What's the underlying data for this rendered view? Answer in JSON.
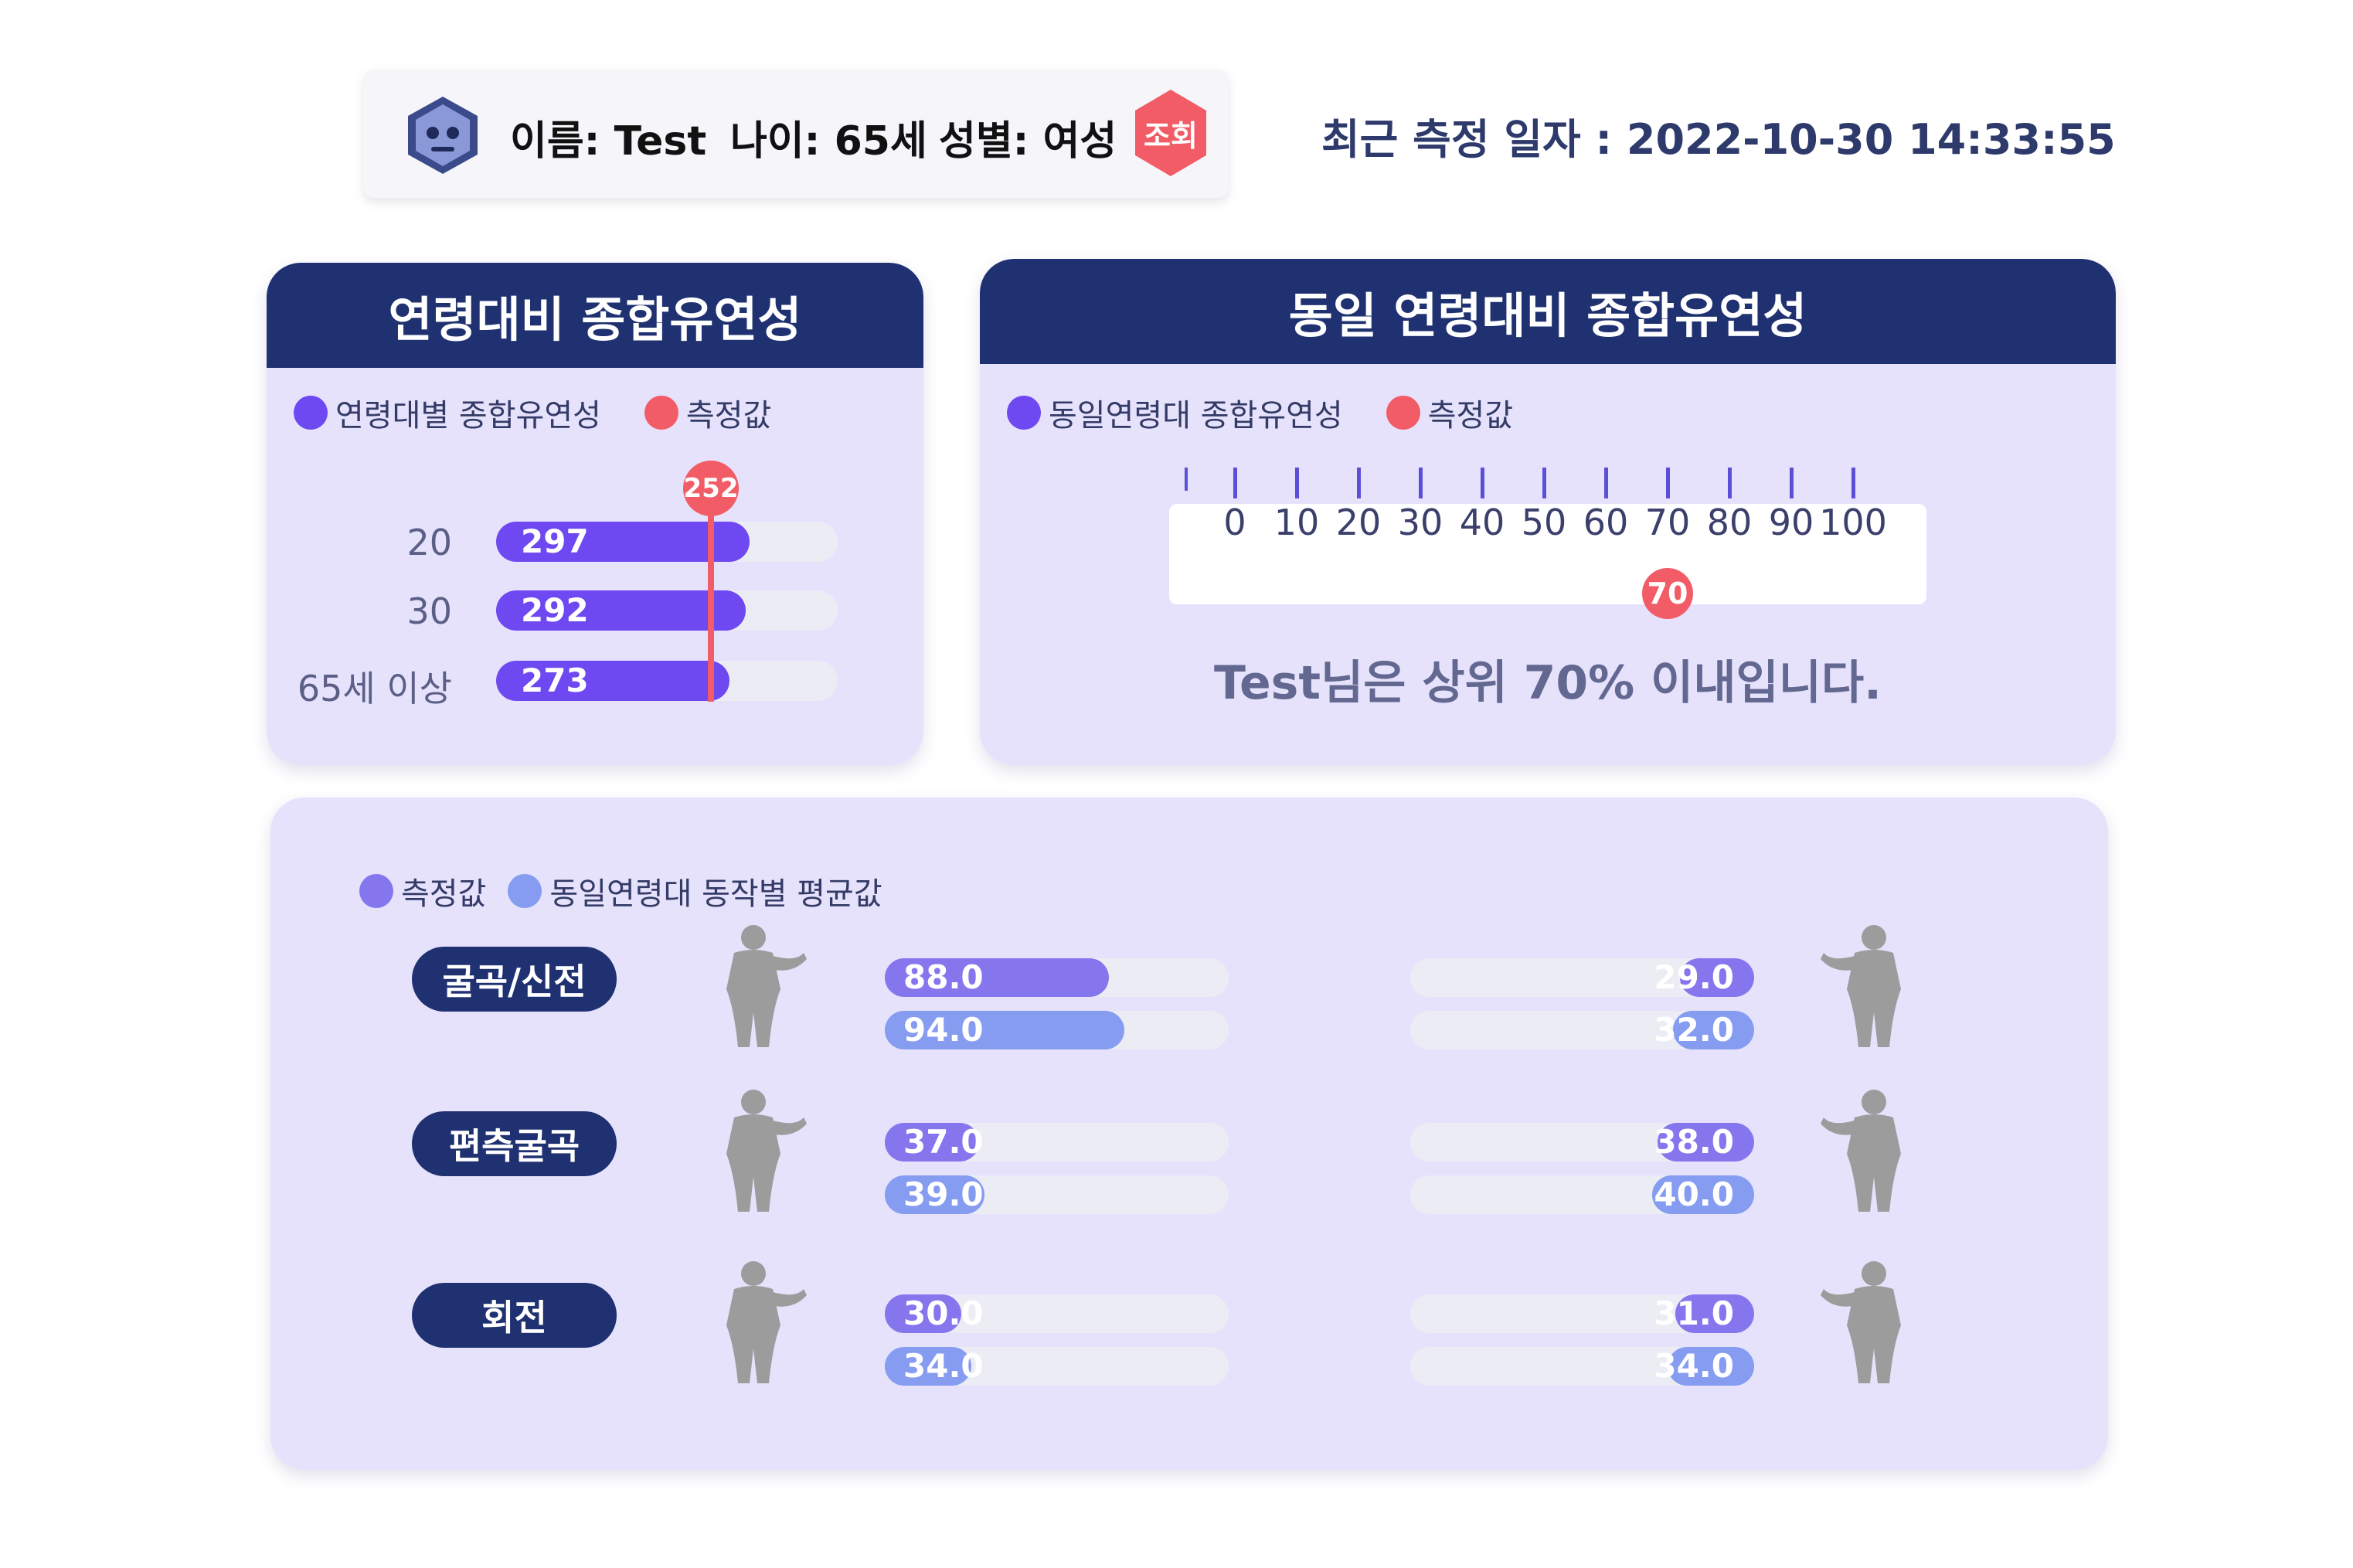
{
  "header": {
    "name_text": "이름: Test",
    "age_text": "나이: 65세",
    "gender_text": "성별: 여성",
    "lookup_label": "조회",
    "measure_date_text": "최근 측정 일자 : 2022-10-30 14:33:55"
  },
  "age_panel": {
    "title": "연령대비 종합유연성",
    "legend_series": "연령대별 종합유연성",
    "legend_measure": "측정값",
    "measured_value": "252",
    "measured_number": 252,
    "scale_max": 400,
    "rows": [
      {
        "label": "20",
        "value": "297",
        "number": 297
      },
      {
        "label": "30",
        "value": "292",
        "number": 292
      },
      {
        "label": "65세 이상",
        "value": "273",
        "number": 273
      }
    ]
  },
  "same_panel": {
    "title": "동일 연령대비 종합유연성",
    "legend_series": "동일연령대 종합유연성",
    "legend_measure": "측정값",
    "ticks": [
      "0",
      "10",
      "20",
      "30",
      "40",
      "50",
      "60",
      "70",
      "80",
      "90",
      "100"
    ],
    "marker_value": "70",
    "marker_number": 70,
    "rank_text": "Test님은 상위 70% 이내입니다."
  },
  "motion_panel": {
    "legend_measure": "측정값",
    "legend_average": "동일연령대 동작별 평균값",
    "scale_max": 135,
    "rows": [
      {
        "category": "굴곡/신전",
        "left": {
          "measure": "88.0",
          "measure_n": 88.0,
          "average": "94.0",
          "average_n": 94.0
        },
        "right": {
          "measure": "29.0",
          "measure_n": 29.0,
          "average": "32.0",
          "average_n": 32.0
        }
      },
      {
        "category": "편측굴곡",
        "left": {
          "measure": "37.0",
          "measure_n": 37.0,
          "average": "39.0",
          "average_n": 39.0
        },
        "right": {
          "measure": "38.0",
          "measure_n": 38.0,
          "average": "40.0",
          "average_n": 40.0
        }
      },
      {
        "category": "회전",
        "left": {
          "measure": "30.0",
          "measure_n": 30.0,
          "average": "34.0",
          "average_n": 34.0
        },
        "right": {
          "measure": "31.0",
          "measure_n": 31.0,
          "average": "34.0",
          "average_n": 34.0
        }
      }
    ]
  },
  "colors": {
    "navy": "#1f3170",
    "purple": "#6e48f0",
    "measure_bar": "#8576ee",
    "average_bar": "#859cf0",
    "marker_red": "#f25c66",
    "panel_bg": "#e6e2fc"
  },
  "icons": [
    "robot-avatar-icon",
    "hexagon-lookup-icon",
    "body-figure-icon"
  ]
}
